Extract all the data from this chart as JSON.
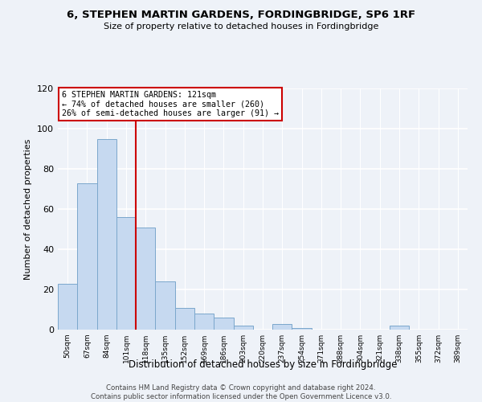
{
  "title": "6, STEPHEN MARTIN GARDENS, FORDINGBRIDGE, SP6 1RF",
  "subtitle": "Size of property relative to detached houses in Fordingbridge",
  "xlabel": "Distribution of detached houses by size in Fordingbridge",
  "ylabel": "Number of detached properties",
  "bar_labels": [
    "50sqm",
    "67sqm",
    "84sqm",
    "101sqm",
    "118sqm",
    "135sqm",
    "152sqm",
    "169sqm",
    "186sqm",
    "203sqm",
    "220sqm",
    "237sqm",
    "254sqm",
    "271sqm",
    "288sqm",
    "304sqm",
    "321sqm",
    "338sqm",
    "355sqm",
    "372sqm",
    "389sqm"
  ],
  "bar_values": [
    23,
    73,
    95,
    56,
    51,
    24,
    11,
    8,
    6,
    2,
    0,
    3,
    1,
    0,
    0,
    0,
    0,
    2,
    0,
    0,
    0
  ],
  "bar_color": "#c6d9f0",
  "bar_edge_color": "#7ba7cc",
  "property_line_x": 4.0,
  "property_line_color": "#cc0000",
  "annotation_lines": [
    "6 STEPHEN MARTIN GARDENS: 121sqm",
    "← 74% of detached houses are smaller (260)",
    "26% of semi-detached houses are larger (91) →"
  ],
  "annotation_box_color": "#ffffff",
  "annotation_box_edge_color": "#cc0000",
  "ylim": [
    0,
    120
  ],
  "yticks": [
    0,
    20,
    40,
    60,
    80,
    100,
    120
  ],
  "footer_line1": "Contains HM Land Registry data © Crown copyright and database right 2024.",
  "footer_line2": "Contains public sector information licensed under the Open Government Licence v3.0.",
  "background_color": "#eef2f8"
}
